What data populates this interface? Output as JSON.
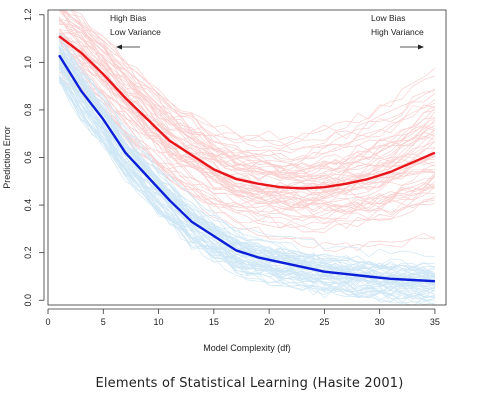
{
  "caption": "Elements of Statistical Learning (Hasite 2001)",
  "chart_data": {
    "type": "line",
    "title": "",
    "xlabel": "Model Complexity (df)",
    "ylabel": "Prediction Error",
    "xlim": [
      0,
      36
    ],
    "ylim": [
      -0.02,
      1.22
    ],
    "x_ticks": [
      0,
      5,
      10,
      15,
      20,
      25,
      30,
      35
    ],
    "y_ticks": [
      0.0,
      0.2,
      0.4,
      0.6,
      0.8,
      1.0,
      1.2
    ],
    "y_tick_labels": [
      "0.0",
      "0.2",
      "0.4",
      "0.6",
      "0.8",
      "1.0",
      "1.2"
    ],
    "grid": false,
    "series": [
      {
        "color": "#e8161a",
        "x": [
          1,
          3,
          5,
          7,
          9,
          11,
          13,
          15,
          17,
          19,
          21,
          23,
          25,
          27,
          29,
          31,
          33,
          35
        ],
        "values": [
          1.11,
          1.04,
          0.95,
          0.85,
          0.76,
          0.67,
          0.61,
          0.55,
          0.51,
          0.49,
          0.475,
          0.47,
          0.475,
          0.49,
          0.51,
          0.54,
          0.58,
          0.62
        ]
      },
      {
        "color": "#0b1ed8",
        "x": [
          1,
          3,
          5,
          7,
          9,
          11,
          13,
          15,
          17,
          19,
          21,
          23,
          25,
          27,
          29,
          31,
          33,
          35
        ],
        "values": [
          1.03,
          0.88,
          0.76,
          0.62,
          0.52,
          0.42,
          0.33,
          0.27,
          0.21,
          0.18,
          0.16,
          0.14,
          0.12,
          0.11,
          0.1,
          0.09,
          0.085,
          0.08
        ]
      }
    ],
    "background_series_colors": [
      "#f7a8a8",
      "#a9d4ee"
    ],
    "annotations": [
      {
        "lines": [
          "High Bias",
          "Low Variance"
        ],
        "arrow": "left"
      },
      {
        "lines": [
          "Low Bias",
          "High Variance"
        ],
        "arrow": "right"
      }
    ]
  }
}
